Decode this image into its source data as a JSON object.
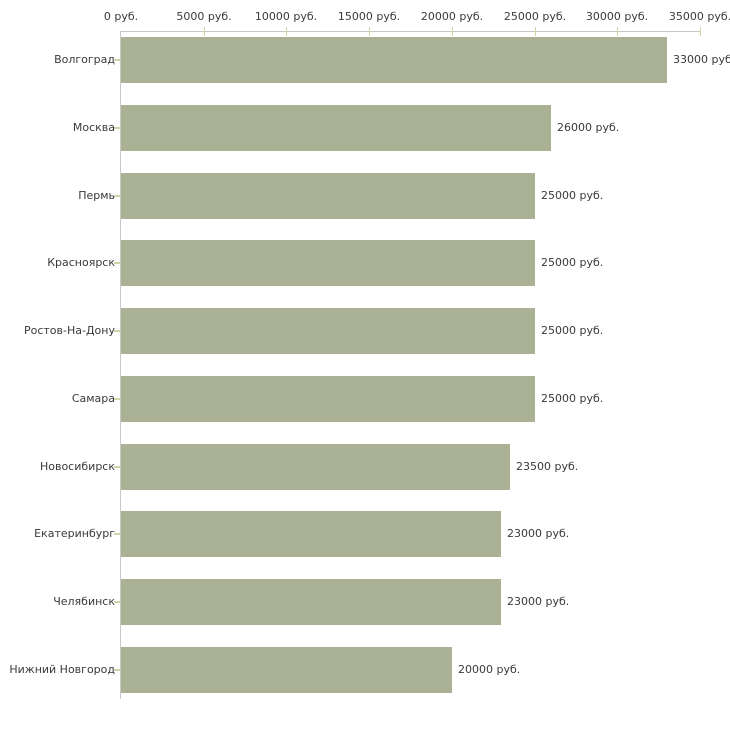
{
  "chart_data": {
    "type": "bar",
    "orientation": "horizontal",
    "title": "",
    "xlabel": "",
    "ylabel": "",
    "categories": [
      "Волгоград",
      "Москва",
      "Пермь",
      "Красноярск",
      "Ростов-На-Дону",
      "Самара",
      "Новосибирск",
      "Екатеринбург",
      "Челябинск",
      "Нижний Новгород"
    ],
    "values": [
      33000,
      26000,
      25000,
      25000,
      25000,
      25000,
      23500,
      23000,
      23000,
      20000
    ],
    "value_labels": [
      "33000 руб",
      "26000 руб.",
      "25000 руб.",
      "25000 руб.",
      "25000 руб.",
      "25000 руб.",
      "23500 руб.",
      "23000 руб.",
      "23000 руб.",
      "20000 руб."
    ],
    "x_tick_values": [
      0,
      5000,
      10000,
      15000,
      20000,
      25000,
      30000,
      35000
    ],
    "x_tick_labels": [
      "0 руб.",
      "5000 руб.",
      "10000 руб.",
      "15000 руб.",
      "20000 руб.",
      "25000 руб.",
      "30000 руб.",
      "35000 руб."
    ],
    "xlim": [
      0,
      35000
    ],
    "grid": false,
    "legend": false,
    "colors": {
      "bar": "#aab194",
      "axis": "#c8c8c8",
      "tick": "#d4d4aa",
      "text": "#3a3a3a",
      "background": "#ffffff"
    }
  }
}
